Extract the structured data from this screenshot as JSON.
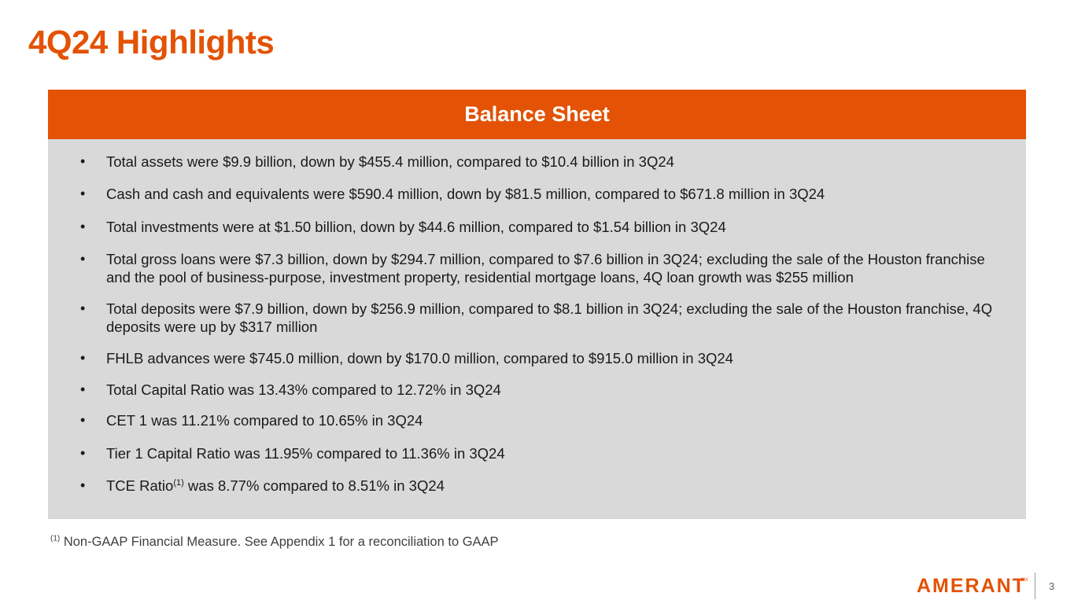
{
  "title": "4Q24 Highlights",
  "panel": {
    "header": "Balance Sheet",
    "bullets": [
      {
        "text": "Total assets were $9.9 billion, down by $455.4 million, compared to $10.4 billion in 3Q24"
      },
      {
        "text": "Cash and cash and equivalents were $590.4 million, down by $81.5 million, compared to $671.8 million in 3Q24"
      },
      {
        "text": "Total investments were at $1.50 billion, down by $44.6 million, compared to $1.54 billion in 3Q24"
      },
      {
        "text": "Total gross loans were $7.3 billion, down by $294.7 million, compared to $7.6 billion in 3Q24; excluding the sale of the Houston franchise and the pool of business-purpose, investment property, residential mortgage loans, 4Q loan growth was $255 million"
      },
      {
        "text": "Total deposits were $7.9 billion, down by $256.9 million, compared to $8.1 billion  in 3Q24; excluding the sale of the Houston franchise, 4Q deposits were up by $317 million"
      },
      {
        "text": "FHLB advances were $745.0 million, down by $170.0 million, compared to $915.0 million in 3Q24"
      },
      {
        "text": "Total Capital Ratio was 13.43% compared to 12.72% in 3Q24"
      },
      {
        "text": "CET 1 was 11.21% compared to 10.65% in 3Q24"
      },
      {
        "text": "Tier 1 Capital Ratio was 11.95% compared to 11.36% in 3Q24"
      },
      {
        "text_before": "TCE Ratio",
        "superscript": "(1)",
        "text_after": " was 8.77% compared to 8.51% in 3Q24"
      }
    ],
    "bullet_symbol": "•"
  },
  "footnote": {
    "marker": "(1)",
    "text": " Non-GAAP Financial Measure. See Appendix 1 for a reconciliation to GAAP"
  },
  "branding": {
    "logo_text": "AMERANT",
    "trademark": "SM",
    "accent_color": "#E35205",
    "panel_color": "#D9D9D9"
  },
  "page_number": "3"
}
